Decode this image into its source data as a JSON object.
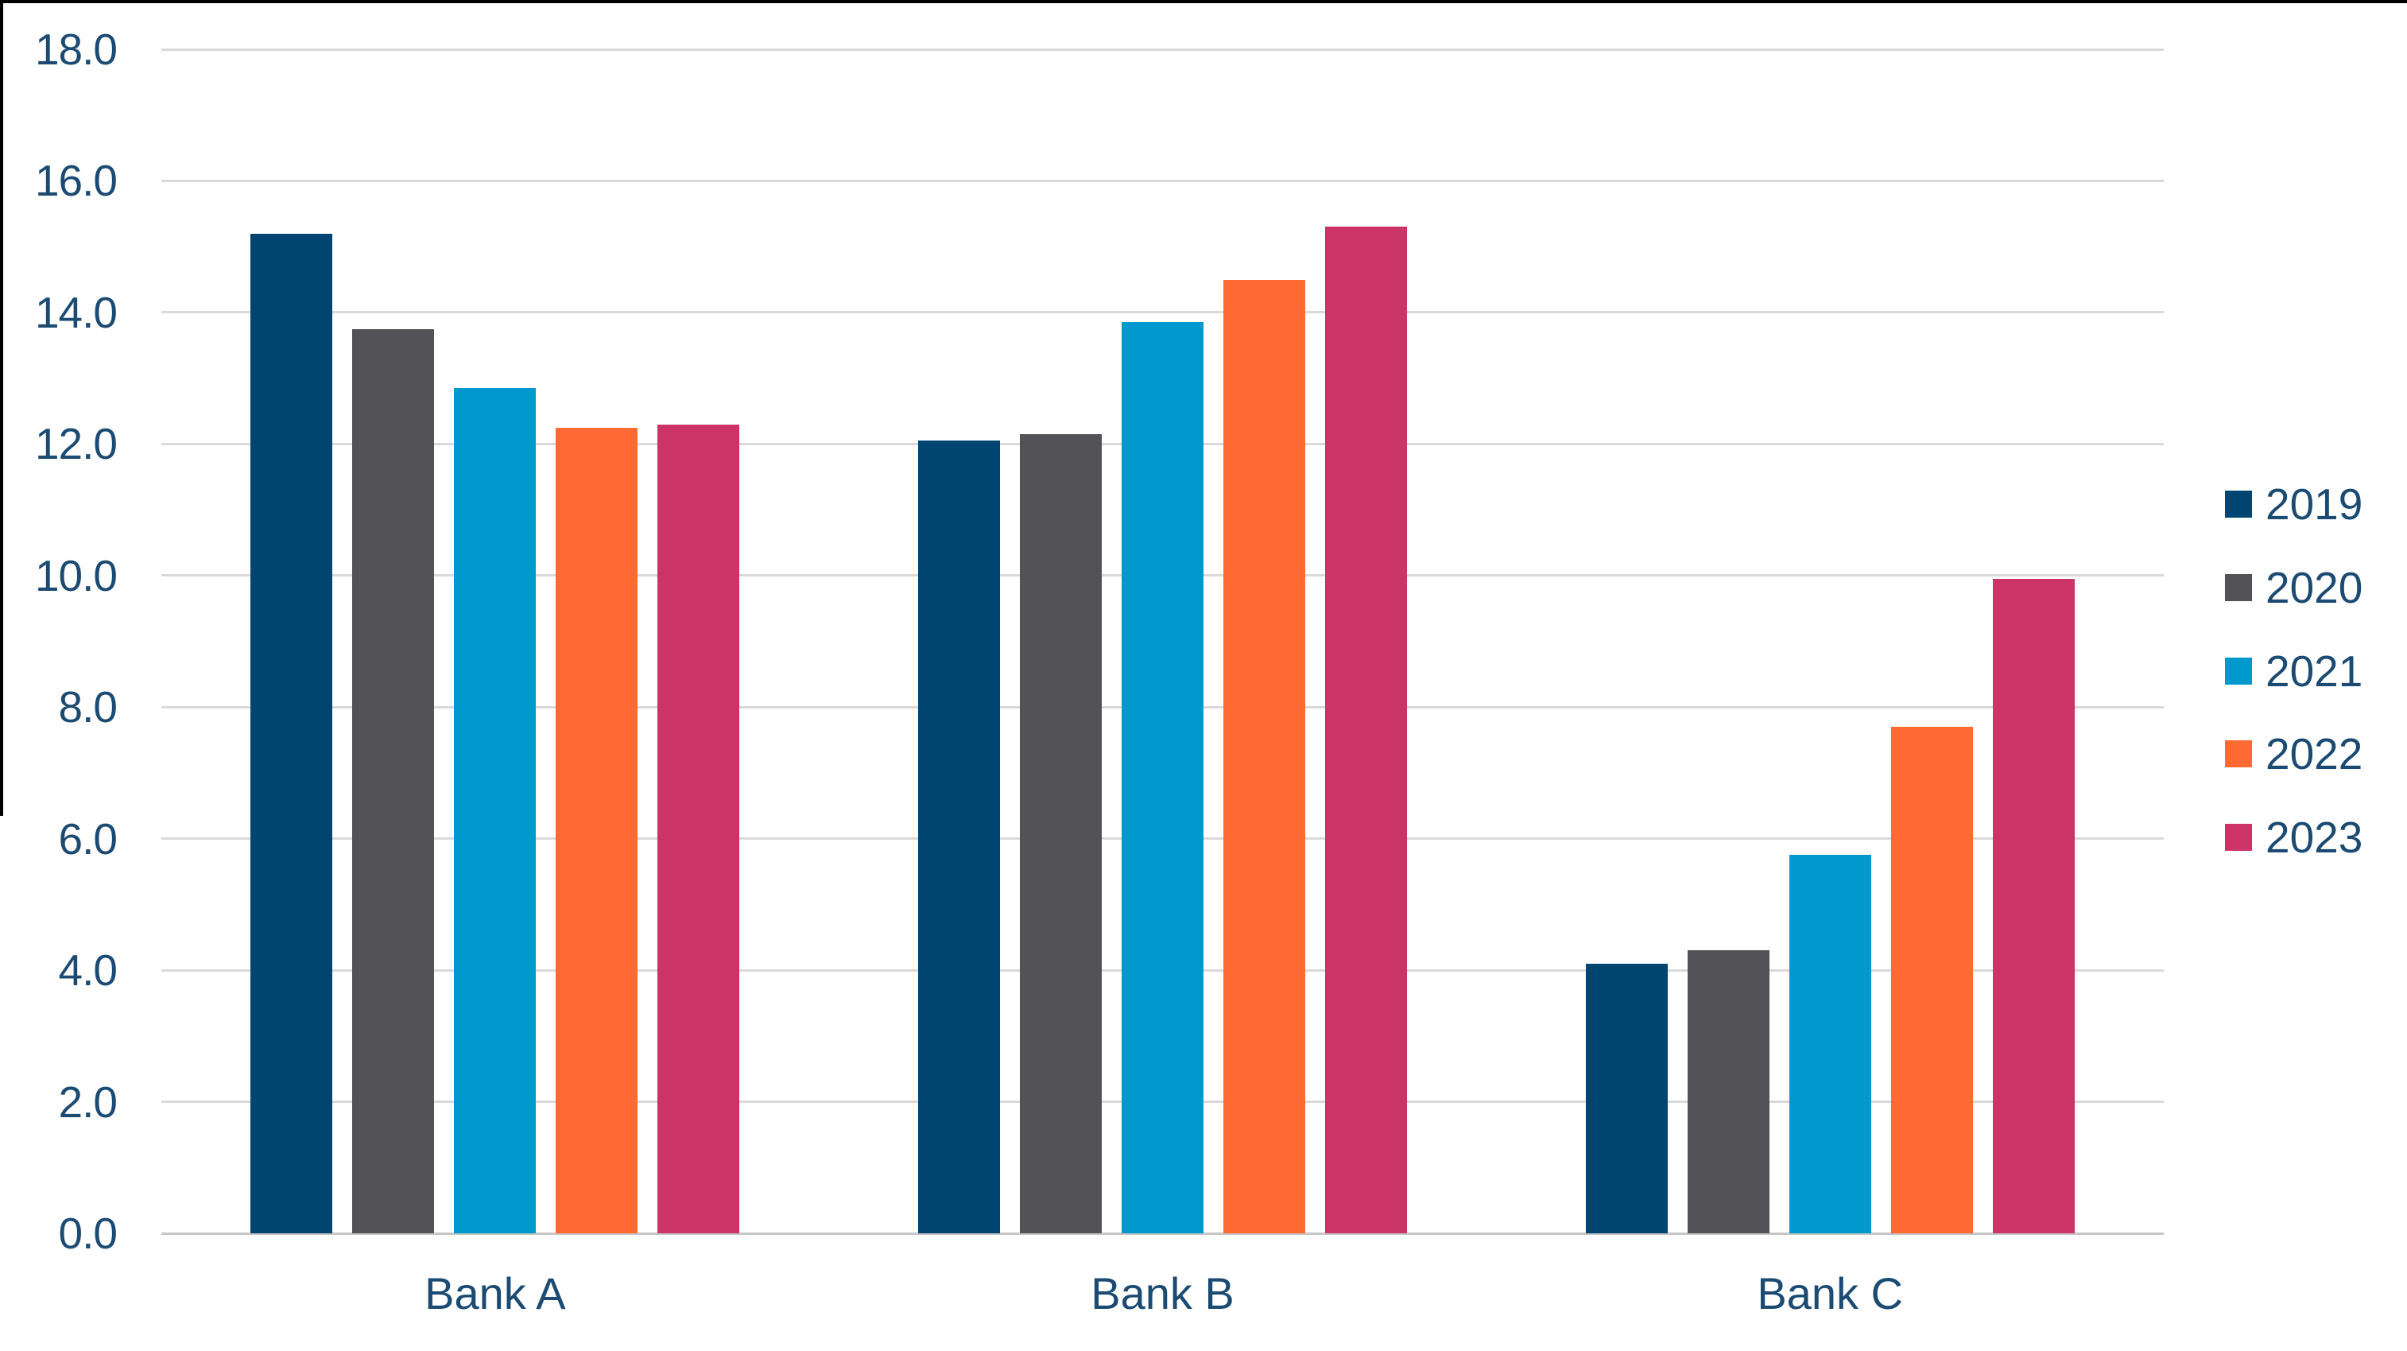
{
  "chart_data": {
    "type": "bar",
    "title": "",
    "xlabel": "",
    "ylabel": "",
    "categories": [
      "Bank A",
      "Bank B",
      "Bank C"
    ],
    "series": [
      {
        "name": "2019",
        "color": "#004471",
        "values": [
          15.2,
          12.05,
          4.1
        ]
      },
      {
        "name": "2020",
        "color": "#525257",
        "values": [
          13.75,
          12.15,
          4.3
        ]
      },
      {
        "name": "2021",
        "color": "#0099CD",
        "values": [
          12.85,
          13.85,
          5.75
        ]
      },
      {
        "name": "2022",
        "color": "#FF6A33",
        "values": [
          12.25,
          14.5,
          7.7
        ]
      },
      {
        "name": "2023",
        "color": "#CC3366",
        "values": [
          12.3,
          15.3,
          9.95
        ]
      }
    ],
    "ylim": [
      0,
      18
    ],
    "ytick_step": 2,
    "ytick_labels": [
      "0.0",
      "2.0",
      "4.0",
      "6.0",
      "8.0",
      "10.0",
      "12.0",
      "14.0",
      "16.0",
      "18.0"
    ],
    "grid": true,
    "legend_entries": [
      "2019",
      "2020",
      "2021",
      "2022",
      "2023"
    ],
    "legend_position": "right",
    "colors": {
      "axis_text": "#1B4A72",
      "gridline": "#D9D9D9",
      "axis_line": "#C6C6C6",
      "background": "#FFFFFF",
      "frame_border": "#000000"
    }
  }
}
